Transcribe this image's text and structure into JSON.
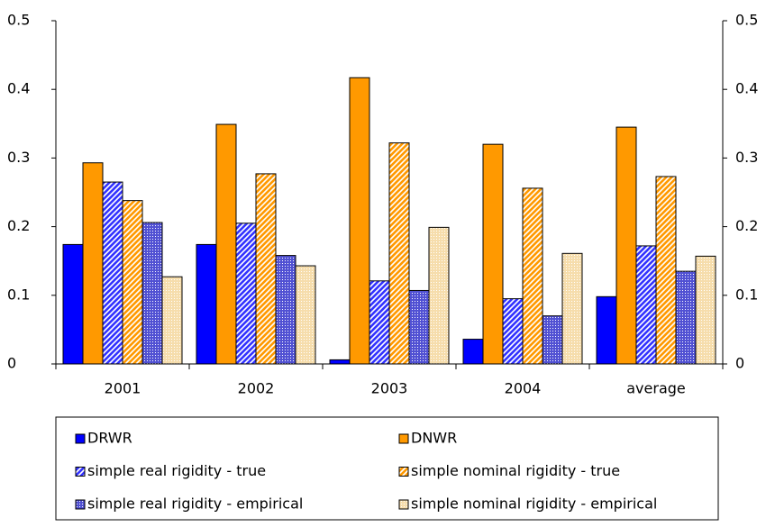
{
  "chart_data": {
    "type": "bar",
    "categories": [
      "2001",
      "2002",
      "2003",
      "2004",
      "average"
    ],
    "series": [
      {
        "name": "DRWR",
        "color": "#0000ff",
        "pattern": "solid",
        "values": [
          0.174,
          0.174,
          0.006,
          0.036,
          0.098
        ]
      },
      {
        "name": "DNWR",
        "color": "#ff9900",
        "pattern": "solid",
        "values": [
          0.293,
          0.349,
          0.417,
          0.32,
          0.345
        ]
      },
      {
        "name": "simple real rigidity - true",
        "color": "#3333ff",
        "pattern": "hatch",
        "values": [
          0.265,
          0.205,
          0.121,
          0.095,
          0.172
        ]
      },
      {
        "name": "simple nominal rigidity - true",
        "color": "#ff9900",
        "pattern": "hatch",
        "values": [
          0.238,
          0.277,
          0.322,
          0.256,
          0.273
        ]
      },
      {
        "name": "simple real rigidity - empirical",
        "color": "#3333cc",
        "pattern": "dots",
        "values": [
          0.206,
          0.158,
          0.107,
          0.07,
          0.135
        ]
      },
      {
        "name": "simple nominal rigidity - empirical",
        "color": "#f5d9a0",
        "pattern": "dots",
        "values": [
          0.127,
          0.143,
          0.199,
          0.161,
          0.157
        ]
      }
    ],
    "ylim": [
      0,
      0.5
    ],
    "yticks": [
      0,
      0.1,
      0.2,
      0.3,
      0.4,
      0.5
    ],
    "y2lim": [
      0,
      0.5
    ],
    "y2ticks": [
      0,
      0.1,
      0.2,
      0.3,
      0.4,
      0.5
    ],
    "legend": "bottom"
  }
}
